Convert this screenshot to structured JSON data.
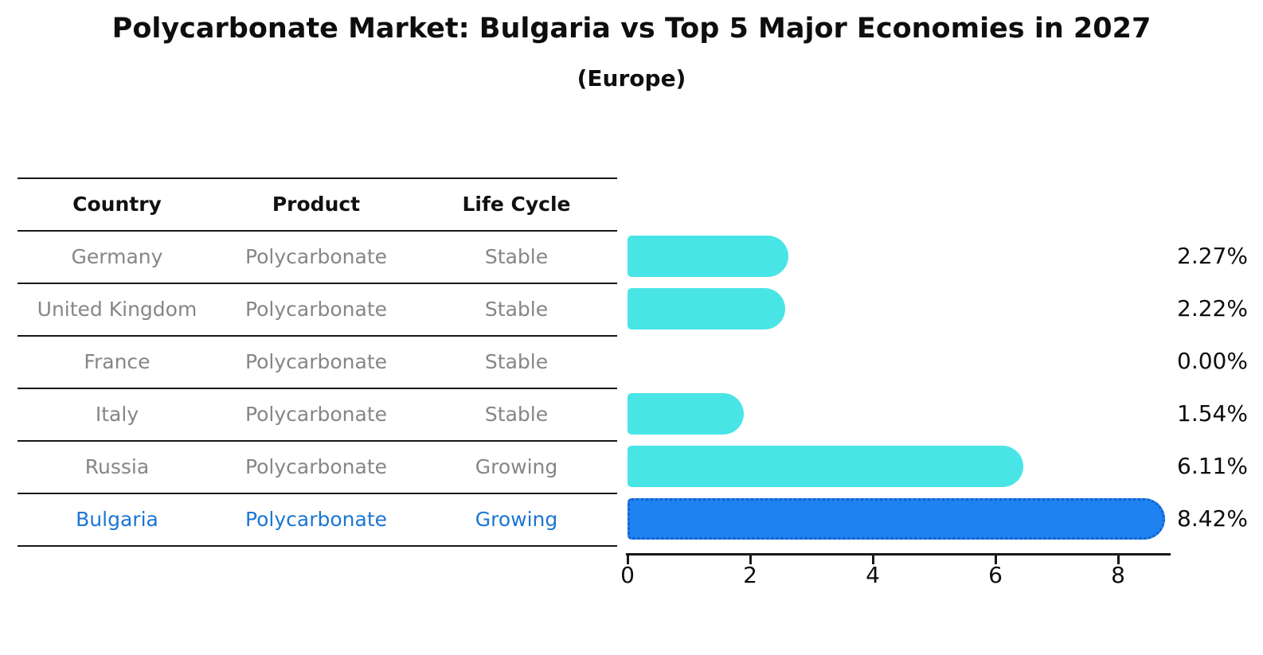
{
  "header": {
    "title": "Polycarbonate Market: Bulgaria vs Top 5 Major Economies in 2027",
    "subtitle": "(Europe)"
  },
  "table": {
    "columns": [
      "Country",
      "Product",
      "Life Cycle"
    ],
    "rows": [
      {
        "country": "Germany",
        "product": "Polycarbonate",
        "life_cycle": "Stable",
        "highlighted": false
      },
      {
        "country": "United Kingdom",
        "product": "Polycarbonate",
        "life_cycle": "Stable",
        "highlighted": false
      },
      {
        "country": "France",
        "product": "Polycarbonate",
        "life_cycle": "Stable",
        "highlighted": false
      },
      {
        "country": "Italy",
        "product": "Polycarbonate",
        "life_cycle": "Stable",
        "highlighted": false
      },
      {
        "country": "Russia",
        "product": "Polycarbonate",
        "life_cycle": "Growing",
        "highlighted": false
      },
      {
        "country": "Bulgaria",
        "product": "Polycarbonate",
        "life_cycle": "Growing",
        "highlighted": true
      }
    ]
  },
  "chart_data": {
    "type": "bar",
    "orientation": "horizontal",
    "title": "Polycarbonate Market: Bulgaria vs Top 5 Major Economies in 2027",
    "subtitle": "(Europe)",
    "categories": [
      "Germany",
      "United Kingdom",
      "France",
      "Italy",
      "Russia",
      "Bulgaria"
    ],
    "values": [
      2.27,
      2.22,
      0.0,
      1.54,
      6.11,
      8.42
    ],
    "value_labels": [
      "2.27%",
      "2.22%",
      "0.00%",
      "1.54%",
      "6.11%",
      "8.42%"
    ],
    "x_ticks": [
      0,
      2,
      4,
      6,
      8
    ],
    "xlim": [
      0,
      8.85
    ],
    "grid": false,
    "legend": "none",
    "bar_color": "#49E5E6",
    "highlight_index": 5,
    "highlight_fill": "#1E82F0",
    "highlight_border": "#1560CE",
    "highlight_border_style": "dotted",
    "highlight_text_color": "#1B76D2"
  }
}
